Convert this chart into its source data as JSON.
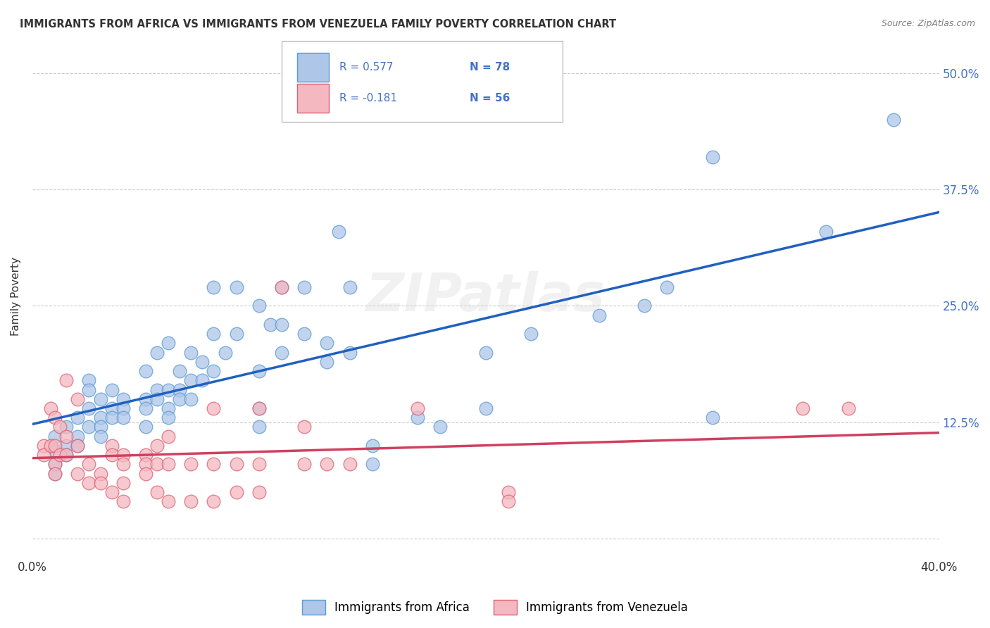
{
  "title": "IMMIGRANTS FROM AFRICA VS IMMIGRANTS FROM VENEZUELA FAMILY POVERTY CORRELATION CHART",
  "source": "Source: ZipAtlas.com",
  "ylabel": "Family Poverty",
  "xlim": [
    0.0,
    0.4
  ],
  "ylim": [
    -0.02,
    0.54
  ],
  "yticks": [
    0.0,
    0.125,
    0.25,
    0.375,
    0.5
  ],
  "ytick_labels": [
    "",
    "12.5%",
    "25.0%",
    "37.5%",
    "50.0%"
  ],
  "xticks": [
    0.0,
    0.1,
    0.2,
    0.3,
    0.4
  ],
  "xtick_labels": [
    "0.0%",
    "",
    "",
    "",
    "40.0%"
  ],
  "grid_color": "#cccccc",
  "background_color": "#ffffff",
  "africa_color": "#aec6e8",
  "africa_edge_color": "#5b9bd5",
  "venezuela_color": "#f4b8c1",
  "venezuela_edge_color": "#e06070",
  "africa_line_color": "#2060c0",
  "venezuela_line_color": "#d04060",
  "tick_label_color": "#4472c4",
  "legend_text_color": "#4472c4",
  "africa_R_text": "R = 0.577",
  "africa_N_text": "N = 78",
  "venezuela_R_text": "R = -0.181",
  "venezuela_N_text": "N = 56",
  "legend_bottom_africa": "Immigrants from Africa",
  "legend_bottom_venezuela": "Immigrants from Venezuela",
  "watermark": "ZIPatlas",
  "africa_scatter": [
    [
      0.01,
      0.095
    ],
    [
      0.01,
      0.08
    ],
    [
      0.01,
      0.11
    ],
    [
      0.01,
      0.07
    ],
    [
      0.015,
      0.12
    ],
    [
      0.015,
      0.1
    ],
    [
      0.015,
      0.09
    ],
    [
      0.02,
      0.13
    ],
    [
      0.02,
      0.11
    ],
    [
      0.02,
      0.1
    ],
    [
      0.025,
      0.14
    ],
    [
      0.025,
      0.12
    ],
    [
      0.025,
      0.17
    ],
    [
      0.025,
      0.16
    ],
    [
      0.03,
      0.15
    ],
    [
      0.03,
      0.13
    ],
    [
      0.03,
      0.12
    ],
    [
      0.03,
      0.11
    ],
    [
      0.035,
      0.16
    ],
    [
      0.035,
      0.14
    ],
    [
      0.035,
      0.13
    ],
    [
      0.04,
      0.15
    ],
    [
      0.04,
      0.14
    ],
    [
      0.04,
      0.13
    ],
    [
      0.05,
      0.18
    ],
    [
      0.05,
      0.15
    ],
    [
      0.05,
      0.14
    ],
    [
      0.05,
      0.12
    ],
    [
      0.055,
      0.2
    ],
    [
      0.055,
      0.16
    ],
    [
      0.055,
      0.15
    ],
    [
      0.06,
      0.21
    ],
    [
      0.06,
      0.16
    ],
    [
      0.06,
      0.14
    ],
    [
      0.06,
      0.13
    ],
    [
      0.065,
      0.18
    ],
    [
      0.065,
      0.16
    ],
    [
      0.065,
      0.15
    ],
    [
      0.07,
      0.2
    ],
    [
      0.07,
      0.17
    ],
    [
      0.07,
      0.15
    ],
    [
      0.075,
      0.19
    ],
    [
      0.075,
      0.17
    ],
    [
      0.08,
      0.27
    ],
    [
      0.08,
      0.22
    ],
    [
      0.08,
      0.18
    ],
    [
      0.085,
      0.2
    ],
    [
      0.09,
      0.27
    ],
    [
      0.09,
      0.22
    ],
    [
      0.1,
      0.25
    ],
    [
      0.1,
      0.18
    ],
    [
      0.1,
      0.14
    ],
    [
      0.1,
      0.12
    ],
    [
      0.105,
      0.23
    ],
    [
      0.11,
      0.27
    ],
    [
      0.11,
      0.23
    ],
    [
      0.11,
      0.2
    ],
    [
      0.12,
      0.27
    ],
    [
      0.12,
      0.22
    ],
    [
      0.13,
      0.21
    ],
    [
      0.13,
      0.19
    ],
    [
      0.135,
      0.33
    ],
    [
      0.14,
      0.27
    ],
    [
      0.14,
      0.2
    ],
    [
      0.15,
      0.1
    ],
    [
      0.15,
      0.08
    ],
    [
      0.17,
      0.13
    ],
    [
      0.18,
      0.12
    ],
    [
      0.2,
      0.14
    ],
    [
      0.2,
      0.2
    ],
    [
      0.22,
      0.22
    ],
    [
      0.25,
      0.24
    ],
    [
      0.27,
      0.25
    ],
    [
      0.28,
      0.27
    ],
    [
      0.3,
      0.13
    ],
    [
      0.35,
      0.33
    ],
    [
      0.38,
      0.45
    ],
    [
      0.3,
      0.41
    ]
  ],
  "venezuela_scatter": [
    [
      0.005,
      0.1
    ],
    [
      0.005,
      0.09
    ],
    [
      0.008,
      0.14
    ],
    [
      0.008,
      0.1
    ],
    [
      0.01,
      0.13
    ],
    [
      0.01,
      0.1
    ],
    [
      0.01,
      0.08
    ],
    [
      0.01,
      0.07
    ],
    [
      0.012,
      0.12
    ],
    [
      0.012,
      0.09
    ],
    [
      0.015,
      0.17
    ],
    [
      0.015,
      0.11
    ],
    [
      0.015,
      0.09
    ],
    [
      0.02,
      0.15
    ],
    [
      0.02,
      0.1
    ],
    [
      0.02,
      0.07
    ],
    [
      0.025,
      0.08
    ],
    [
      0.025,
      0.06
    ],
    [
      0.03,
      0.07
    ],
    [
      0.03,
      0.06
    ],
    [
      0.035,
      0.1
    ],
    [
      0.035,
      0.09
    ],
    [
      0.035,
      0.05
    ],
    [
      0.04,
      0.09
    ],
    [
      0.04,
      0.08
    ],
    [
      0.04,
      0.06
    ],
    [
      0.04,
      0.04
    ],
    [
      0.05,
      0.09
    ],
    [
      0.05,
      0.08
    ],
    [
      0.05,
      0.07
    ],
    [
      0.055,
      0.1
    ],
    [
      0.055,
      0.08
    ],
    [
      0.055,
      0.05
    ],
    [
      0.06,
      0.11
    ],
    [
      0.06,
      0.08
    ],
    [
      0.06,
      0.04
    ],
    [
      0.07,
      0.08
    ],
    [
      0.07,
      0.04
    ],
    [
      0.08,
      0.14
    ],
    [
      0.08,
      0.08
    ],
    [
      0.08,
      0.04
    ],
    [
      0.09,
      0.08
    ],
    [
      0.09,
      0.05
    ],
    [
      0.1,
      0.14
    ],
    [
      0.1,
      0.08
    ],
    [
      0.1,
      0.05
    ],
    [
      0.11,
      0.27
    ],
    [
      0.12,
      0.12
    ],
    [
      0.12,
      0.08
    ],
    [
      0.13,
      0.08
    ],
    [
      0.14,
      0.08
    ],
    [
      0.17,
      0.14
    ],
    [
      0.21,
      0.05
    ],
    [
      0.21,
      0.04
    ],
    [
      0.34,
      0.14
    ],
    [
      0.36,
      0.14
    ]
  ]
}
